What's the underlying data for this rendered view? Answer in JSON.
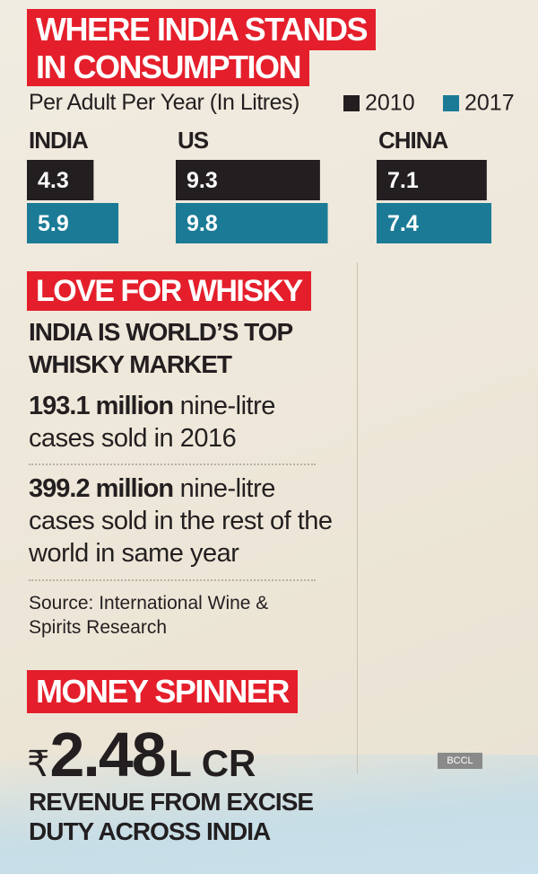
{
  "chart_data": {
    "type": "bar",
    "title": [
      "WHERE INDIA STANDS",
      "IN CONSUMPTION"
    ],
    "subtitle": "Per Adult Per Year (In Litres)",
    "categories": [
      "INDIA",
      "US",
      "CHINA"
    ],
    "series": [
      {
        "name": "2010",
        "color": "#231f20",
        "values": [
          4.3,
          9.3,
          7.1
        ]
      },
      {
        "name": "2017",
        "color": "#1b7b96",
        "values": [
          5.9,
          9.8,
          7.4
        ]
      }
    ]
  },
  "whisky": {
    "heading": "LOVE FOR WHISKY",
    "subheading": [
      "INDIA IS WORLD’S TOP",
      "WHISKY MARKET"
    ],
    "facts": [
      {
        "bold": "193.1 million",
        "text": "nine-litre cases sold in 2016"
      },
      {
        "bold": "399.2 million",
        "text": "nine-litre cases sold in the rest of the world in same year"
      }
    ],
    "source": "Source: International Wine & Spirits Research"
  },
  "money": {
    "heading": "MONEY SPINNER",
    "currency": "₹",
    "amount": "2.48",
    "unit": "L CR",
    "caption": "REVENUE FROM EXCISE DUTY ACROSS INDIA"
  },
  "watermark": "BCCL"
}
